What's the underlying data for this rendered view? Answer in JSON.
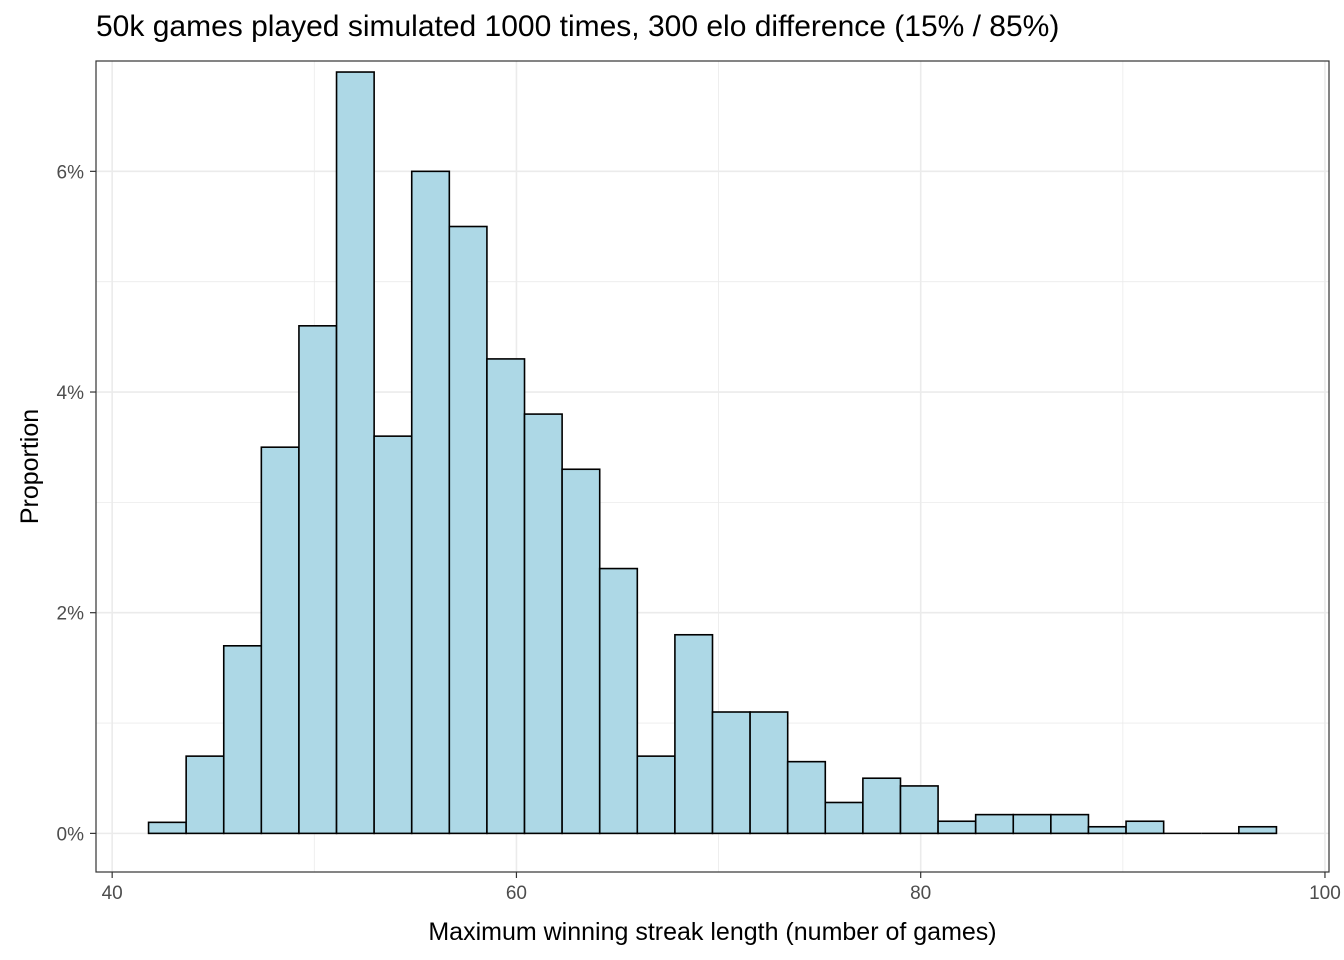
{
  "chart_data": {
    "type": "bar",
    "subtype": "histogram",
    "title": "50k games played simulated 1000 times, 300 elo difference (15% / 85%)",
    "xlabel": "Maximum winning streak length (number of games)",
    "ylabel": "Proportion",
    "xlim": [
      39.2,
      100.2
    ],
    "ylim": [
      -0.35,
      7.0
    ],
    "x_ticks": [
      40,
      60,
      80,
      100
    ],
    "x_tick_labels": [
      "40",
      "60",
      "80",
      "100"
    ],
    "y_ticks": [
      0,
      2,
      4,
      6
    ],
    "y_tick_labels": [
      "0%",
      "2%",
      "4%",
      "6%"
    ],
    "bin_width": 1.86,
    "bin_start": 41.8,
    "values": [
      0.1,
      0.7,
      1.7,
      3.5,
      4.6,
      6.9,
      3.6,
      6.0,
      5.5,
      4.3,
      3.8,
      3.3,
      2.4,
      0.7,
      1.8,
      1.1,
      1.1,
      0.65,
      0.28,
      0.5,
      0.43,
      0.11,
      0.17,
      0.17,
      0.17,
      0.06,
      0.11,
      0.0,
      0.0,
      0.06
    ],
    "value_unit": "%",
    "grid": true,
    "bar_fill": "#add8e6",
    "bar_stroke": "#000000",
    "panel_border": "#333333",
    "grid_color": "#ebebeb"
  }
}
